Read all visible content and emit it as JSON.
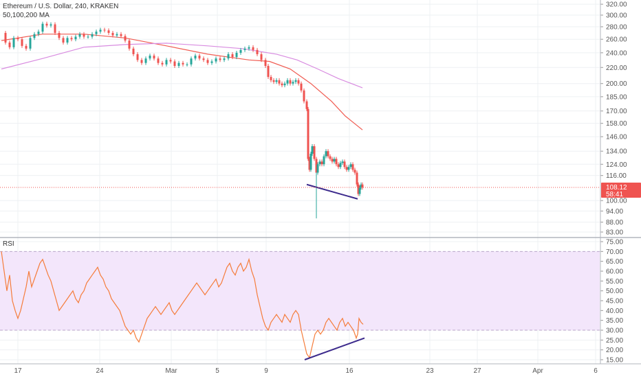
{
  "header": {
    "symbol_line": "Ethereum / U.S. Dollar, 240, KRAKEN",
    "indicator_line": "50,100,200 MA",
    "rsi_label": "RSI"
  },
  "colors": {
    "up": "#26a69a",
    "down": "#ef5350",
    "ma100": "#f05a50",
    "ma200": "#d88be0",
    "rsi_line": "#f57c3a",
    "rsi_band": "#f3e6fb",
    "trendline": "#3c2a8c",
    "price_line": "#ef5350",
    "grid": "#eef0f3",
    "axis_text": "#555555"
  },
  "price_axis": {
    "ticks": [
      "320.00",
      "300.00",
      "280.00",
      "260.00",
      "240.00",
      "220.00",
      "200.00",
      "185.00",
      "170.00",
      "158.00",
      "146.00",
      "134.00",
      "124.00",
      "116.00",
      "100.00",
      "94.00",
      "88.00",
      "83.00"
    ],
    "scale": "log",
    "current_price": "108.12",
    "countdown": "58:41"
  },
  "rsi_axis": {
    "ticks": [
      "75.00",
      "70.00",
      "65.00",
      "60.00",
      "55.00",
      "50.00",
      "45.00",
      "40.00",
      "35.00",
      "30.00",
      "25.00",
      "20.00",
      "15.00"
    ],
    "overbought": 70,
    "oversold": 30
  },
  "time_axis": {
    "labels": [
      "17",
      "24",
      "Mar",
      "5",
      "9",
      "16",
      "23",
      "27",
      "Apr",
      "6"
    ]
  },
  "chart_data": [
    {
      "type": "candlestick",
      "title": "Ethereum / U.S. Dollar, 240, KRAKEN",
      "ylim": [
        80,
        330
      ],
      "grid": true,
      "close_path": [
        [
          0,
          270
        ],
        [
          6,
          255
        ],
        [
          12,
          248
        ],
        [
          18,
          262
        ],
        [
          24,
          260
        ],
        [
          30,
          250
        ],
        [
          36,
          246
        ],
        [
          42,
          262
        ],
        [
          48,
          268
        ],
        [
          54,
          272
        ],
        [
          60,
          285
        ],
        [
          66,
          282
        ],
        [
          72,
          284
        ],
        [
          78,
          270
        ],
        [
          84,
          262
        ],
        [
          90,
          255
        ],
        [
          96,
          262
        ],
        [
          102,
          260
        ],
        [
          108,
          264
        ],
        [
          114,
          268
        ],
        [
          120,
          264
        ],
        [
          126,
          264
        ],
        [
          132,
          268
        ],
        [
          138,
          272
        ],
        [
          144,
          275
        ],
        [
          150,
          274
        ],
        [
          156,
          270
        ],
        [
          162,
          266
        ],
        [
          168,
          268
        ],
        [
          174,
          265
        ],
        [
          180,
          258
        ],
        [
          186,
          246
        ],
        [
          192,
          238
        ],
        [
          198,
          230
        ],
        [
          204,
          226
        ],
        [
          210,
          232
        ],
        [
          216,
          236
        ],
        [
          222,
          232
        ],
        [
          228,
          226
        ],
        [
          234,
          224
        ],
        [
          240,
          230
        ],
        [
          246,
          228
        ],
        [
          252,
          222
        ],
        [
          258,
          226
        ],
        [
          264,
          224
        ],
        [
          270,
          224
        ],
        [
          276,
          232
        ],
        [
          282,
          236
        ],
        [
          288,
          232
        ],
        [
          294,
          230
        ],
        [
          300,
          226
        ],
        [
          306,
          228
        ],
        [
          312,
          232
        ],
        [
          318,
          230
        ],
        [
          324,
          232
        ],
        [
          330,
          238
        ],
        [
          336,
          234
        ],
        [
          342,
          240
        ],
        [
          348,
          244
        ],
        [
          354,
          246
        ],
        [
          360,
          248
        ],
        [
          366,
          244
        ],
        [
          372,
          238
        ],
        [
          378,
          230
        ],
        [
          384,
          222
        ],
        [
          388,
          208
        ],
        [
          392,
          204
        ],
        [
          396,
          202
        ],
        [
          400,
          204
        ],
        [
          404,
          200
        ],
        [
          408,
          198
        ],
        [
          412,
          200
        ],
        [
          416,
          204
        ],
        [
          420,
          200
        ],
        [
          424,
          202
        ],
        [
          428,
          204
        ],
        [
          432,
          200
        ],
        [
          436,
          192
        ],
        [
          440,
          180
        ],
        [
          444,
          172
        ],
        [
          446,
          128
        ],
        [
          448,
          120
        ],
        [
          450,
          132
        ],
        [
          452,
          138
        ],
        [
          455,
          128
        ],
        [
          458,
          118
        ],
        [
          460,
          124
        ],
        [
          463,
          126
        ],
        [
          466,
          124
        ],
        [
          469,
          130
        ],
        [
          472,
          134
        ],
        [
          475,
          130
        ],
        [
          478,
          128
        ],
        [
          481,
          126
        ],
        [
          484,
          128
        ],
        [
          487,
          124
        ],
        [
          490,
          122
        ],
        [
          493,
          125
        ],
        [
          496,
          126
        ],
        [
          499,
          122
        ],
        [
          502,
          120
        ],
        [
          505,
          122
        ],
        [
          508,
          124
        ],
        [
          511,
          120
        ],
        [
          514,
          118
        ],
        [
          517,
          110
        ],
        [
          519,
          104
        ],
        [
          521,
          108
        ],
        [
          523,
          110
        ],
        [
          525,
          108
        ]
      ],
      "series": [
        {
          "name": "MA 100",
          "values": [
            [
              0,
              258
            ],
            [
              60,
              268
            ],
            [
              120,
              268
            ],
            [
              180,
              262
            ],
            [
              240,
              250
            ],
            [
              300,
              238
            ],
            [
              360,
              230
            ],
            [
              390,
              228
            ],
            [
              420,
              218
            ],
            [
              450,
              200
            ],
            [
              480,
              180
            ],
            [
              500,
              165
            ],
            [
              525,
              152
            ]
          ]
        },
        {
          "name": "MA 200",
          "values": [
            [
              0,
              218
            ],
            [
              60,
              232
            ],
            [
              120,
              248
            ],
            [
              180,
              252
            ],
            [
              240,
              254
            ],
            [
              300,
              250
            ],
            [
              350,
              246
            ],
            [
              400,
              238
            ],
            [
              430,
              230
            ],
            [
              460,
              218
            ],
            [
              490,
              206
            ],
            [
              525,
              195
            ]
          ]
        }
      ],
      "annotations": [
        {
          "type": "trendline",
          "from": [
            444,
            110
          ],
          "to": [
            518,
            101
          ]
        }
      ]
    },
    {
      "type": "line",
      "title": "RSI",
      "ylim": [
        12,
        76
      ],
      "band": [
        30,
        70
      ],
      "values": [
        [
          0,
          70
        ],
        [
          4,
          60
        ],
        [
          8,
          50
        ],
        [
          12,
          58
        ],
        [
          16,
          45
        ],
        [
          20,
          40
        ],
        [
          24,
          36
        ],
        [
          28,
          40
        ],
        [
          32,
          46
        ],
        [
          36,
          52
        ],
        [
          40,
          60
        ],
        [
          44,
          52
        ],
        [
          48,
          56
        ],
        [
          52,
          60
        ],
        [
          56,
          64
        ],
        [
          60,
          66
        ],
        [
          64,
          62
        ],
        [
          68,
          58
        ],
        [
          72,
          55
        ],
        [
          76,
          50
        ],
        [
          80,
          45
        ],
        [
          84,
          40
        ],
        [
          88,
          42
        ],
        [
          92,
          44
        ],
        [
          96,
          46
        ],
        [
          100,
          48
        ],
        [
          104,
          50
        ],
        [
          108,
          46
        ],
        [
          112,
          44
        ],
        [
          116,
          48
        ],
        [
          120,
          50
        ],
        [
          124,
          54
        ],
        [
          128,
          56
        ],
        [
          132,
          58
        ],
        [
          136,
          60
        ],
        [
          140,
          62
        ],
        [
          144,
          58
        ],
        [
          148,
          56
        ],
        [
          152,
          52
        ],
        [
          156,
          50
        ],
        [
          160,
          46
        ],
        [
          164,
          44
        ],
        [
          168,
          42
        ],
        [
          172,
          40
        ],
        [
          176,
          36
        ],
        [
          180,
          32
        ],
        [
          184,
          30
        ],
        [
          188,
          28
        ],
        [
          192,
          30
        ],
        [
          196,
          26
        ],
        [
          200,
          24
        ],
        [
          204,
          28
        ],
        [
          208,
          32
        ],
        [
          212,
          36
        ],
        [
          216,
          38
        ],
        [
          220,
          40
        ],
        [
          224,
          42
        ],
        [
          228,
          40
        ],
        [
          232,
          38
        ],
        [
          236,
          40
        ],
        [
          240,
          42
        ],
        [
          244,
          44
        ],
        [
          248,
          40
        ],
        [
          252,
          38
        ],
        [
          256,
          40
        ],
        [
          260,
          42
        ],
        [
          264,
          44
        ],
        [
          268,
          46
        ],
        [
          272,
          48
        ],
        [
          276,
          50
        ],
        [
          280,
          52
        ],
        [
          284,
          54
        ],
        [
          288,
          52
        ],
        [
          292,
          50
        ],
        [
          296,
          48
        ],
        [
          300,
          50
        ],
        [
          304,
          52
        ],
        [
          308,
          54
        ],
        [
          312,
          56
        ],
        [
          316,
          52
        ],
        [
          320,
          54
        ],
        [
          324,
          58
        ],
        [
          328,
          62
        ],
        [
          332,
          64
        ],
        [
          336,
          60
        ],
        [
          340,
          58
        ],
        [
          344,
          62
        ],
        [
          348,
          64
        ],
        [
          352,
          60
        ],
        [
          356,
          62
        ],
        [
          360,
          66
        ],
        [
          364,
          60
        ],
        [
          368,
          56
        ],
        [
          372,
          48
        ],
        [
          376,
          42
        ],
        [
          380,
          36
        ],
        [
          384,
          32
        ],
        [
          388,
          30
        ],
        [
          392,
          34
        ],
        [
          396,
          36
        ],
        [
          400,
          38
        ],
        [
          404,
          36
        ],
        [
          408,
          34
        ],
        [
          412,
          38
        ],
        [
          416,
          36
        ],
        [
          420,
          34
        ],
        [
          424,
          38
        ],
        [
          428,
          40
        ],
        [
          432,
          38
        ],
        [
          436,
          30
        ],
        [
          440,
          24
        ],
        [
          444,
          18
        ],
        [
          448,
          16
        ],
        [
          452,
          22
        ],
        [
          456,
          28
        ],
        [
          460,
          30
        ],
        [
          464,
          28
        ],
        [
          468,
          30
        ],
        [
          472,
          34
        ],
        [
          476,
          36
        ],
        [
          480,
          34
        ],
        [
          484,
          32
        ],
        [
          488,
          30
        ],
        [
          492,
          34
        ],
        [
          496,
          36
        ],
        [
          500,
          32
        ],
        [
          504,
          34
        ],
        [
          508,
          32
        ],
        [
          512,
          30
        ],
        [
          516,
          26
        ],
        [
          518,
          28
        ],
        [
          520,
          36
        ],
        [
          523,
          34
        ],
        [
          526,
          33
        ]
      ],
      "annotations": [
        {
          "type": "trendline",
          "from": [
            441,
            15
          ],
          "to": [
            528,
            26
          ]
        }
      ]
    }
  ]
}
